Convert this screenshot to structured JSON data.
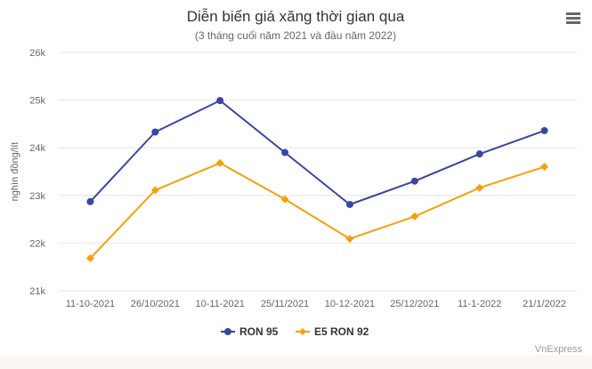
{
  "chart_data": {
    "type": "line",
    "title": "Diễn biến giá xăng thời gian qua",
    "subtitle": "(3 tháng cuối năm 2021 và đầu năm 2022)",
    "ylabel": "nghìn đồng/lít",
    "xlabel": "",
    "categories": [
      "11-10-2021",
      "26/10/2021",
      "10-11-2021",
      "25/11/2021",
      "10-12-2021",
      "25/12/2021",
      "11-1-2022",
      "21/1/2022"
    ],
    "ylim": [
      21000,
      26000
    ],
    "yticks": [
      21000,
      22000,
      23000,
      24000,
      25000,
      26000
    ],
    "ytick_labels": [
      "21k",
      "22k",
      "23k",
      "24k",
      "25k",
      "26k"
    ],
    "grid": true,
    "legend_position": "bottom-center",
    "series": [
      {
        "name": "RON 95",
        "color": "#3a46a3",
        "marker": "circle",
        "values": [
          22870,
          24330,
          24990,
          23900,
          22810,
          23300,
          23870,
          24360
        ]
      },
      {
        "name": "E5 RON 92",
        "color": "#f5a00e",
        "marker": "diamond",
        "values": [
          21680,
          23110,
          23680,
          22920,
          22090,
          22560,
          23160,
          23600
        ]
      }
    ],
    "credit": "VnExpress"
  }
}
